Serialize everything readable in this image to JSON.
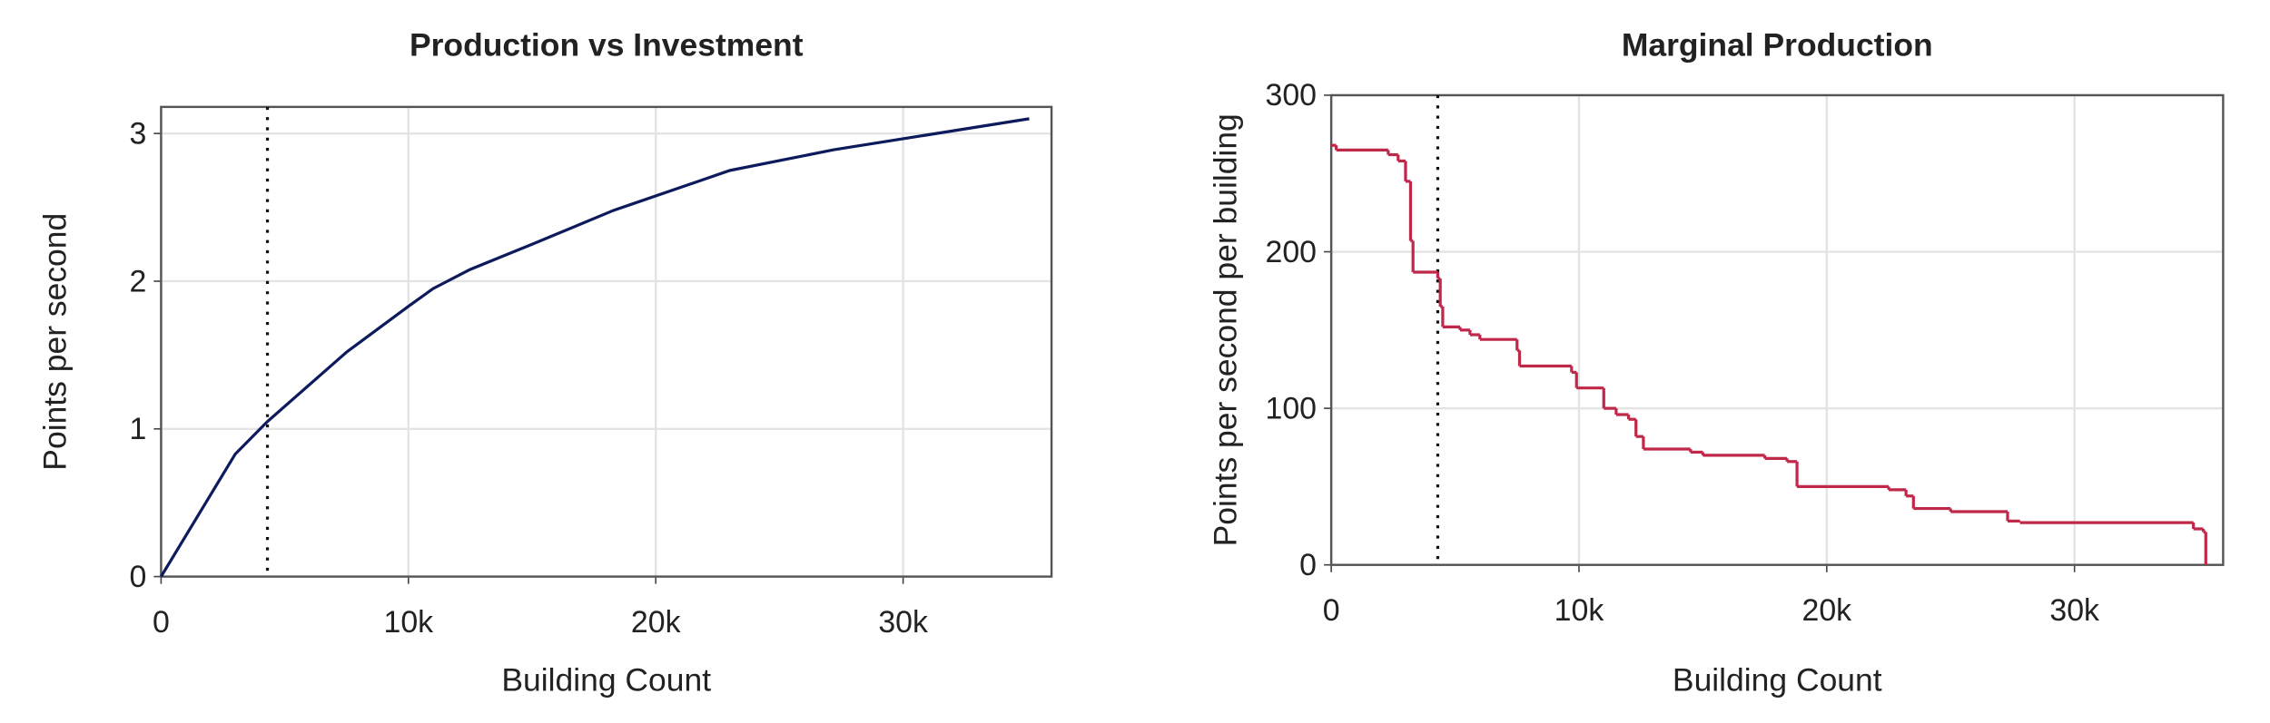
{
  "chart_data": [
    {
      "type": "line",
      "title": "Production vs Investment",
      "xlabel": "Building Count",
      "ylabel": "Points per second",
      "series": [
        {
          "color": "#0d1a5c",
          "x": [
            0,
            3000,
            4300,
            7500,
            10000,
            11000,
            12500,
            15000,
            18300,
            19000,
            23000,
            27200,
            35100
          ],
          "values": [
            0,
            0.83,
            1.05,
            1.52,
            1.83,
            1.95,
            2.08,
            2.25,
            2.48,
            2.52,
            2.75,
            2.89,
            3.1
          ]
        }
      ],
      "xlim": [
        0,
        36000
      ],
      "ylim": [
        0,
        3.18
      ],
      "xticks": [
        0,
        {
          "value": 10000,
          "label": "10k"
        },
        {
          "value": 20000,
          "label": "20k"
        },
        {
          "value": 30000,
          "label": "30k"
        }
      ],
      "yticks": [
        0,
        1,
        2,
        3
      ],
      "grid": true,
      "vline": 4300
    },
    {
      "type": "step",
      "title": "Marginal Production",
      "xlabel": "Building Count",
      "ylabel": "Points per second per  building",
      "series": [
        {
          "color": "#c0284a",
          "x": [
            0,
            200,
            2300,
            2700,
            3000,
            3200,
            3300,
            4300,
            4400,
            4500,
            5200,
            5600,
            6000,
            7500,
            7600,
            9700,
            9900,
            11000,
            11500,
            12000,
            12300,
            12600,
            14500,
            15000,
            17500,
            18400,
            18800,
            22500,
            23200,
            23500,
            25000,
            27300,
            27800,
            34800,
            35200,
            35300
          ],
          "values": [
            268,
            265,
            262,
            258,
            245,
            207,
            187,
            183,
            165,
            152,
            150,
            147,
            144,
            137,
            127,
            123,
            113,
            100,
            96,
            93,
            82,
            74,
            72,
            70,
            68,
            66,
            50,
            48,
            44,
            36,
            34,
            28,
            27,
            23,
            21,
            0
          ]
        }
      ],
      "xlim": [
        0,
        36000
      ],
      "ylim": [
        0,
        300
      ],
      "xticks": [
        0,
        {
          "value": 10000,
          "label": "10k"
        },
        {
          "value": 20000,
          "label": "20k"
        },
        {
          "value": 30000,
          "label": "30k"
        }
      ],
      "yticks": [
        0,
        100,
        200,
        300
      ],
      "grid": true,
      "vline": 4300
    }
  ]
}
